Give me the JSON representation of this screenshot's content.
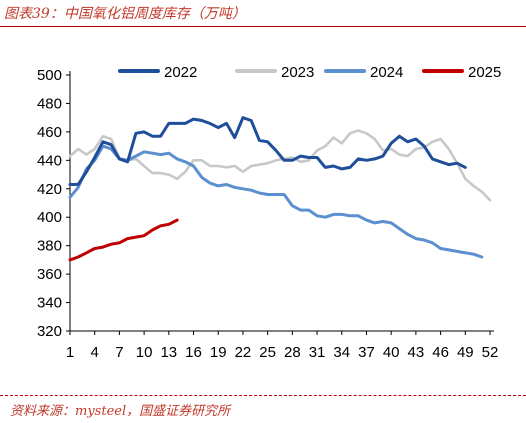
{
  "title": "图表39：中国氧化铝周度库存（万吨）",
  "source": "资料来源：mysteel，国盛证券研究所",
  "chart_data": {
    "type": "line",
    "xlim": [
      1,
      52
    ],
    "x_ticks": [
      1,
      4,
      7,
      10,
      13,
      16,
      19,
      22,
      25,
      28,
      31,
      34,
      37,
      40,
      43,
      46,
      49,
      52
    ],
    "ylim": [
      320,
      500
    ],
    "y_ticks": [
      320,
      340,
      360,
      380,
      400,
      420,
      440,
      460,
      480,
      500
    ],
    "grid": false,
    "legend_position": "top",
    "series": [
      {
        "name": "2022",
        "color": "#1f4e9a",
        "x": [
          1,
          2,
          3,
          4,
          5,
          6,
          7,
          8,
          9,
          10,
          11,
          12,
          13,
          14,
          15,
          16,
          17,
          18,
          19,
          20,
          21,
          22,
          23,
          24,
          25,
          26,
          27,
          28,
          29,
          30,
          31,
          32,
          33,
          34,
          35,
          36,
          37,
          38,
          39,
          40,
          41,
          42,
          43,
          44,
          45,
          46,
          47,
          48,
          49
        ],
        "values": [
          423,
          423,
          432,
          442,
          453,
          451,
          441,
          439,
          459,
          460,
          457,
          457,
          466,
          466,
          466,
          469,
          468,
          466,
          463,
          466,
          456,
          470,
          468,
          454,
          453,
          447,
          440,
          440,
          443,
          442,
          442,
          435,
          436,
          434,
          435,
          441,
          440,
          441,
          443,
          452,
          457,
          453,
          455,
          450,
          441,
          439,
          437,
          438,
          435
        ]
      },
      {
        "name": "2023",
        "color": "#c8c8c8",
        "x": [
          1,
          2,
          3,
          4,
          5,
          6,
          7,
          8,
          9,
          10,
          11,
          12,
          13,
          14,
          15,
          16,
          17,
          18,
          19,
          20,
          21,
          22,
          23,
          24,
          25,
          26,
          27,
          28,
          29,
          30,
          31,
          32,
          33,
          34,
          35,
          36,
          37,
          38,
          39,
          40,
          41,
          42,
          43,
          44,
          45,
          46,
          47,
          48,
          49,
          50,
          51,
          52
        ],
        "values": [
          443,
          448,
          444,
          448,
          457,
          455,
          441,
          440,
          441,
          436,
          431,
          431,
          430,
          427,
          432,
          440,
          440,
          436,
          436,
          435,
          436,
          432,
          436,
          437,
          438,
          440,
          441,
          442,
          439,
          440,
          447,
          450,
          456,
          452,
          459,
          461,
          459,
          455,
          447,
          448,
          444,
          443,
          448,
          449,
          453,
          455,
          448,
          438,
          427,
          422,
          418,
          412
        ]
      },
      {
        "name": "2024",
        "color": "#5b8fd0",
        "x": [
          1,
          2,
          3,
          4,
          5,
          6,
          7,
          8,
          9,
          10,
          11,
          12,
          13,
          14,
          15,
          16,
          17,
          18,
          19,
          20,
          21,
          22,
          23,
          24,
          25,
          26,
          27,
          28,
          29,
          30,
          31,
          32,
          33,
          34,
          35,
          36,
          37,
          38,
          39,
          40,
          41,
          42,
          43,
          44,
          45,
          46,
          47,
          48,
          49,
          50,
          51
        ],
        "values": [
          414,
          421,
          434,
          440,
          450,
          448,
          441,
          440,
          443,
          446,
          445,
          444,
          445,
          441,
          439,
          436,
          428,
          424,
          422,
          423,
          421,
          420,
          419,
          417,
          416,
          416,
          416,
          408,
          405,
          405,
          401,
          400,
          402,
          402,
          401,
          401,
          398,
          396,
          397,
          396,
          392,
          388,
          385,
          384,
          382,
          378,
          377,
          376,
          375,
          374,
          372
        ]
      },
      {
        "name": "2025",
        "color": "#c00000",
        "x": [
          1,
          2,
          3,
          4,
          5,
          6,
          7,
          8,
          9,
          10,
          11,
          12,
          13,
          14
        ],
        "values": [
          370,
          372,
          375,
          378,
          379,
          381,
          382,
          385,
          386,
          387,
          391,
          394,
          395,
          398
        ]
      }
    ]
  }
}
